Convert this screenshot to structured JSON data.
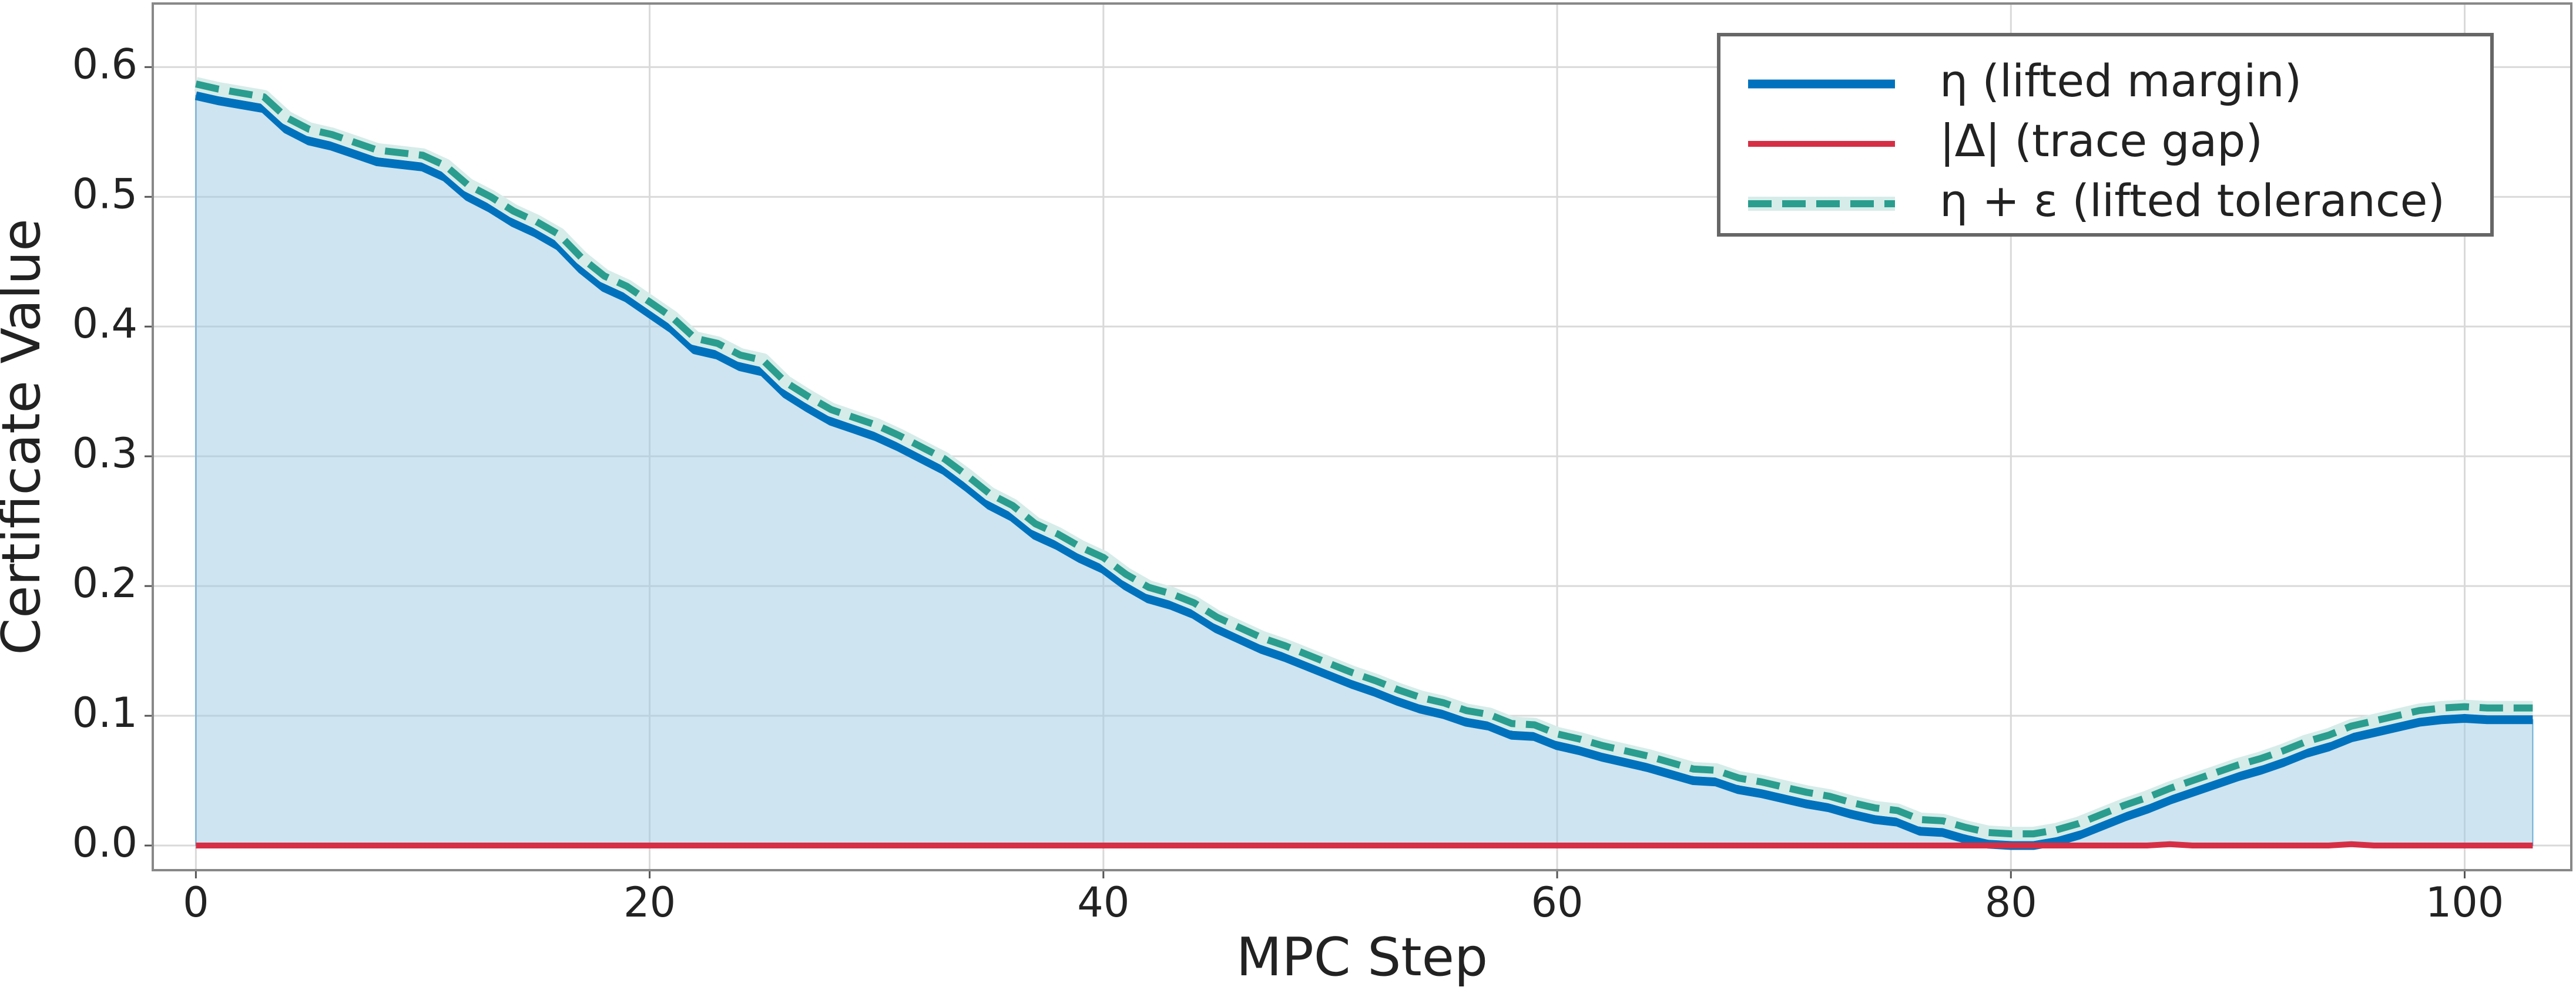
{
  "chart_data": {
    "type": "line",
    "xlabel": "MPC Step",
    "ylabel": "Certificate Value",
    "x": [
      0,
      1,
      2,
      3,
      4,
      5,
      6,
      7,
      8,
      9,
      10,
      11,
      12,
      13,
      14,
      15,
      16,
      17,
      18,
      19,
      20,
      21,
      22,
      23,
      24,
      25,
      26,
      27,
      28,
      29,
      30,
      31,
      32,
      33,
      34,
      35,
      36,
      37,
      38,
      39,
      40,
      41,
      42,
      43,
      44,
      45,
      46,
      47,
      48,
      49,
      50,
      51,
      52,
      53,
      54,
      55,
      56,
      57,
      58,
      59,
      60,
      61,
      62,
      63,
      64,
      65,
      66,
      67,
      68,
      69,
      70,
      71,
      72,
      73,
      74,
      75,
      76,
      77,
      78,
      79,
      80,
      81,
      82,
      83,
      84,
      85,
      86,
      87,
      88,
      89,
      90,
      91,
      92,
      93,
      94,
      95,
      96,
      97,
      98,
      99,
      100,
      101,
      102,
      103
    ],
    "series": [
      {
        "name": "η (lifted margin)",
        "color": "#0072bd",
        "fill": true,
        "values": [
          0.578,
          0.574,
          0.571,
          0.568,
          0.552,
          0.543,
          0.539,
          0.533,
          0.527,
          0.525,
          0.523,
          0.515,
          0.5,
          0.491,
          0.48,
          0.472,
          0.462,
          0.444,
          0.43,
          0.422,
          0.41,
          0.398,
          0.382,
          0.378,
          0.369,
          0.365,
          0.348,
          0.337,
          0.327,
          0.321,
          0.315,
          0.307,
          0.298,
          0.289,
          0.276,
          0.262,
          0.253,
          0.239,
          0.231,
          0.221,
          0.213,
          0.2,
          0.19,
          0.185,
          0.178,
          0.167,
          0.159,
          0.151,
          0.145,
          0.138,
          0.131,
          0.124,
          0.118,
          0.111,
          0.105,
          0.101,
          0.095,
          0.092,
          0.085,
          0.084,
          0.077,
          0.073,
          0.068,
          0.064,
          0.06,
          0.055,
          0.05,
          0.049,
          0.043,
          0.04,
          0.036,
          0.032,
          0.029,
          0.024,
          0.02,
          0.018,
          0.011,
          0.01,
          0.005,
          0.001,
          0.0,
          0.0,
          0.003,
          0.008,
          0.015,
          0.022,
          0.028,
          0.035,
          0.041,
          0.047,
          0.053,
          0.058,
          0.064,
          0.071,
          0.076,
          0.083,
          0.087,
          0.091,
          0.095,
          0.097,
          0.098,
          0.097,
          0.097,
          0.097
        ]
      },
      {
        "name": "|Δ| (trace gap)",
        "color": "#d62f45",
        "values": [
          0,
          0,
          0,
          0,
          0,
          0,
          0,
          0,
          0,
          0,
          0,
          0,
          0,
          0,
          0,
          0,
          0,
          0,
          0,
          0,
          0,
          0,
          0,
          0,
          0,
          0,
          0,
          0,
          0,
          0,
          0,
          0,
          0,
          0,
          0,
          0,
          0,
          0,
          0,
          0,
          0,
          0,
          0,
          0,
          0,
          0,
          0,
          0,
          0,
          0,
          0,
          0,
          0,
          0,
          0,
          0,
          0,
          0,
          0,
          0,
          0,
          0,
          0,
          0,
          0,
          0,
          0,
          0,
          0,
          0,
          0,
          0,
          0,
          0,
          0,
          0,
          0,
          0,
          0,
          0,
          0,
          0,
          0,
          0,
          0,
          0,
          0,
          0.001,
          0,
          0,
          0,
          0,
          0,
          0,
          0,
          0.001,
          0,
          0,
          0,
          0,
          0,
          0,
          0,
          0
        ]
      },
      {
        "name": "η + ε (lifted tolerance)",
        "color": "#2a9d8f",
        "dashed": true,
        "values": [
          0.587,
          0.583,
          0.58,
          0.577,
          0.561,
          0.552,
          0.548,
          0.542,
          0.536,
          0.534,
          0.532,
          0.524,
          0.509,
          0.5,
          0.489,
          0.481,
          0.471,
          0.453,
          0.439,
          0.431,
          0.419,
          0.407,
          0.391,
          0.387,
          0.378,
          0.374,
          0.357,
          0.346,
          0.336,
          0.33,
          0.324,
          0.316,
          0.307,
          0.298,
          0.285,
          0.271,
          0.262,
          0.248,
          0.24,
          0.23,
          0.222,
          0.209,
          0.199,
          0.194,
          0.187,
          0.176,
          0.168,
          0.16,
          0.154,
          0.147,
          0.14,
          0.133,
          0.127,
          0.12,
          0.114,
          0.11,
          0.104,
          0.101,
          0.094,
          0.093,
          0.086,
          0.082,
          0.077,
          0.073,
          0.069,
          0.064,
          0.059,
          0.058,
          0.052,
          0.049,
          0.045,
          0.041,
          0.038,
          0.033,
          0.029,
          0.027,
          0.02,
          0.019,
          0.014,
          0.01,
          0.009,
          0.009,
          0.012,
          0.017,
          0.024,
          0.031,
          0.037,
          0.044,
          0.05,
          0.056,
          0.062,
          0.067,
          0.073,
          0.08,
          0.085,
          0.092,
          0.096,
          0.1,
          0.104,
          0.106,
          0.107,
          0.106,
          0.106,
          0.106
        ]
      }
    ],
    "xlim": [
      -1.9,
      104.7
    ],
    "ylim": [
      -0.019,
      0.649
    ],
    "xticks": [
      0,
      20,
      40,
      60,
      80,
      100
    ],
    "yticks": [
      {
        "value": 0,
        "label": "0.0"
      },
      0.1,
      0.2,
      0.3,
      0.4,
      0.5,
      0.6
    ],
    "grid": true,
    "legend": "upper right"
  }
}
